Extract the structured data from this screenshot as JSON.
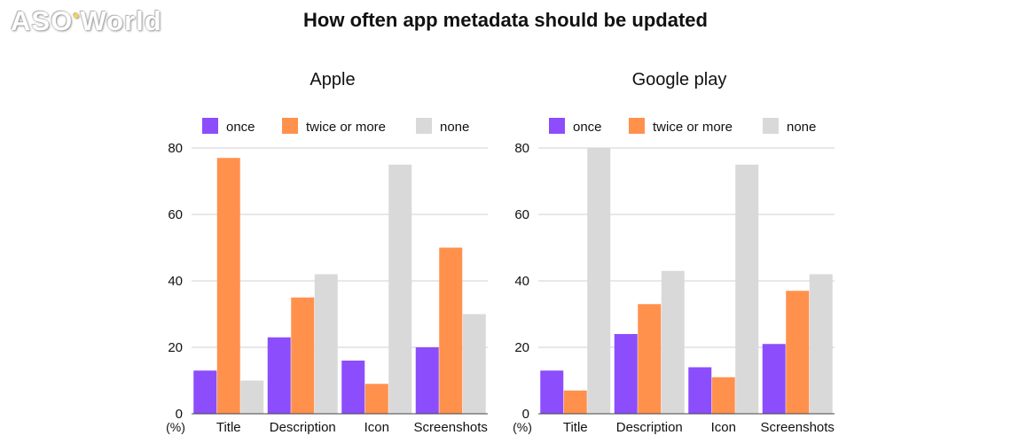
{
  "brand": {
    "name_a": "AS",
    "name_b": "O",
    "name_c": "World"
  },
  "title": "How often app metadata should be updated",
  "colors": {
    "once": "#8c4dfc",
    "twice_or_more": "#ff914d",
    "none": "#d9d9d9",
    "grid": "#d0d0d0",
    "axis": "#444444"
  },
  "chart_data": [
    {
      "type": "bar",
      "title": "Apple",
      "ylabel": "(%)",
      "ylim": [
        0,
        80
      ],
      "yticks": [
        0,
        20,
        40,
        60,
        80
      ],
      "legend_position": "top",
      "categories": [
        "Title",
        "Description",
        "Icon",
        "Screenshots"
      ],
      "series": [
        {
          "name": "once",
          "key": "once",
          "values": [
            13,
            23,
            16,
            20
          ]
        },
        {
          "name": "twice or more",
          "key": "twice_or_more",
          "values": [
            77,
            35,
            9,
            50
          ]
        },
        {
          "name": "none",
          "key": "none",
          "values": [
            10,
            42,
            75,
            30
          ]
        }
      ]
    },
    {
      "type": "bar",
      "title": "Google play",
      "ylabel": "(%)",
      "ylim": [
        0,
        80
      ],
      "yticks": [
        0,
        20,
        40,
        60,
        80
      ],
      "legend_position": "top",
      "categories": [
        "Title",
        "Description",
        "Icon",
        "Screenshots"
      ],
      "series": [
        {
          "name": "once",
          "key": "once",
          "values": [
            13,
            24,
            14,
            21
          ]
        },
        {
          "name": "twice or more",
          "key": "twice_or_more",
          "values": [
            7,
            33,
            11,
            37
          ]
        },
        {
          "name": "none",
          "key": "none",
          "values": [
            80,
            43,
            75,
            42
          ]
        }
      ]
    }
  ]
}
